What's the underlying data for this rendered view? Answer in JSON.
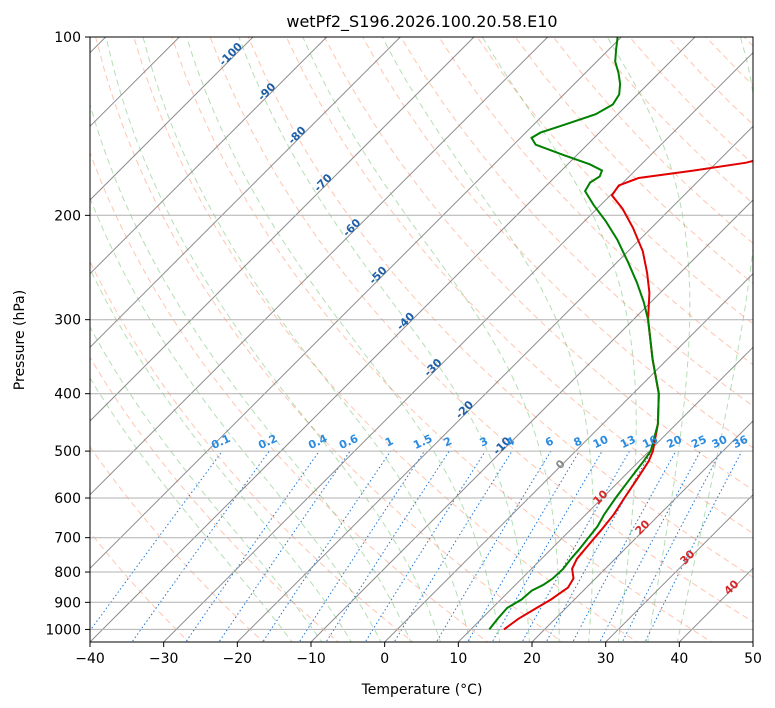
{
  "chart_data": {
    "type": "line",
    "title": "wetPf2_S196.2026.100.20.58.E10",
    "xlabel": "Temperature (°C)",
    "ylabel": "Pressure (hPa)",
    "xlim": [
      -40,
      50
    ],
    "ylim": [
      1050,
      100
    ],
    "x_ticks": [
      -40,
      -30,
      -20,
      -10,
      0,
      10,
      20,
      30,
      40,
      50
    ],
    "y_ticks": [
      100,
      200,
      300,
      400,
      500,
      600,
      700,
      800,
      900,
      1000
    ],
    "grid": true,
    "skew_note": "Isotherms are skewed; labels along the diagonal show isotherm values",
    "isotherm_labels": [
      -100,
      -90,
      -80,
      -70,
      -60,
      -50,
      -40,
      -30,
      -20,
      -10
    ],
    "freezing_label": "0",
    "red_labels": [
      "10",
      "20",
      "30",
      "40"
    ],
    "mixing_ratio_labels": [
      "0.1",
      "0.2",
      "0.4",
      "0.6",
      "1",
      "1.5",
      "2",
      "3",
      "4",
      "6",
      "8",
      "10",
      "13",
      "16",
      "20",
      "25",
      "30",
      "36"
    ],
    "series": [
      {
        "name": "Temperature",
        "color": "#e00000",
        "points": [
          {
            "p": 1000,
            "t": 14.5
          },
          {
            "p": 960,
            "t": 15.0
          },
          {
            "p": 920,
            "t": 16.0
          },
          {
            "p": 890,
            "t": 16.8
          },
          {
            "p": 850,
            "t": 17.5
          },
          {
            "p": 820,
            "t": 17.0
          },
          {
            "p": 790,
            "t": 15.5
          },
          {
            "p": 760,
            "t": 14.8
          },
          {
            "p": 720,
            "t": 14.5
          },
          {
            "p": 680,
            "t": 14.2
          },
          {
            "p": 640,
            "t": 13.8
          },
          {
            "p": 600,
            "t": 13.0
          },
          {
            "p": 560,
            "t": 12.2
          },
          {
            "p": 520,
            "t": 11.3
          },
          {
            "p": 500,
            "t": 10.5
          },
          {
            "p": 450,
            "t": 7.5
          },
          {
            "p": 400,
            "t": 3.5
          },
          {
            "p": 350,
            "t": -2.0
          },
          {
            "p": 300,
            "t": -8.0
          },
          {
            "p": 270,
            "t": -11.5
          },
          {
            "p": 250,
            "t": -14.5
          },
          {
            "p": 230,
            "t": -18.0
          },
          {
            "p": 210,
            "t": -22.5
          },
          {
            "p": 195,
            "t": -26.5
          },
          {
            "p": 185,
            "t": -29.8
          },
          {
            "p": 178,
            "t": -30.2
          },
          {
            "p": 173,
            "t": -28.5
          },
          {
            "p": 168,
            "t": -22.0
          },
          {
            "p": 163,
            "t": -16.0
          },
          {
            "p": 158,
            "t": -13.0
          },
          {
            "p": 150,
            "t": -12.0
          },
          {
            "p": 140,
            "t": -13.0
          },
          {
            "p": 130,
            "t": -14.5
          },
          {
            "p": 120,
            "t": -16.5
          },
          {
            "p": 110,
            "t": -19.0
          },
          {
            "p": 100,
            "t": -22.0
          }
        ]
      },
      {
        "name": "Dewpoint",
        "color": "#008000",
        "points": [
          {
            "p": 1000,
            "t": 12.5
          },
          {
            "p": 960,
            "t": 12.2
          },
          {
            "p": 920,
            "t": 12.0
          },
          {
            "p": 890,
            "t": 12.8
          },
          {
            "p": 860,
            "t": 13.0
          },
          {
            "p": 840,
            "t": 13.8
          },
          {
            "p": 820,
            "t": 14.2
          },
          {
            "p": 790,
            "t": 14.3
          },
          {
            "p": 760,
            "t": 14.0
          },
          {
            "p": 730,
            "t": 13.8
          },
          {
            "p": 700,
            "t": 13.5
          },
          {
            "p": 670,
            "t": 13.2
          },
          {
            "p": 640,
            "t": 12.5
          },
          {
            "p": 600,
            "t": 11.8
          },
          {
            "p": 560,
            "t": 11.2
          },
          {
            "p": 520,
            "t": 10.6
          },
          {
            "p": 500,
            "t": 10.2
          },
          {
            "p": 450,
            "t": 7.5
          },
          {
            "p": 400,
            "t": 3.5
          },
          {
            "p": 350,
            "t": -2.0
          },
          {
            "p": 300,
            "t": -8.0
          },
          {
            "p": 280,
            "t": -11.0
          },
          {
            "p": 260,
            "t": -14.5
          },
          {
            "p": 240,
            "t": -18.5
          },
          {
            "p": 220,
            "t": -23.0
          },
          {
            "p": 205,
            "t": -27.0
          },
          {
            "p": 192,
            "t": -31.0
          },
          {
            "p": 182,
            "t": -34.0
          },
          {
            "p": 176,
            "t": -34.5
          },
          {
            "p": 172,
            "t": -34.0
          },
          {
            "p": 168,
            "t": -34.5
          },
          {
            "p": 164,
            "t": -37.0
          },
          {
            "p": 158,
            "t": -42.0
          },
          {
            "p": 152,
            "t": -47.0
          },
          {
            "p": 148,
            "t": -48.5
          },
          {
            "p": 145,
            "t": -48.0
          },
          {
            "p": 140,
            "t": -45.5
          },
          {
            "p": 135,
            "t": -43.0
          },
          {
            "p": 130,
            "t": -42.0
          },
          {
            "p": 125,
            "t": -42.5
          },
          {
            "p": 120,
            "t": -43.8
          },
          {
            "p": 115,
            "t": -45.5
          },
          {
            "p": 110,
            "t": -47.5
          },
          {
            "p": 105,
            "t": -49.0
          },
          {
            "p": 100,
            "t": -50.5
          }
        ]
      }
    ]
  }
}
